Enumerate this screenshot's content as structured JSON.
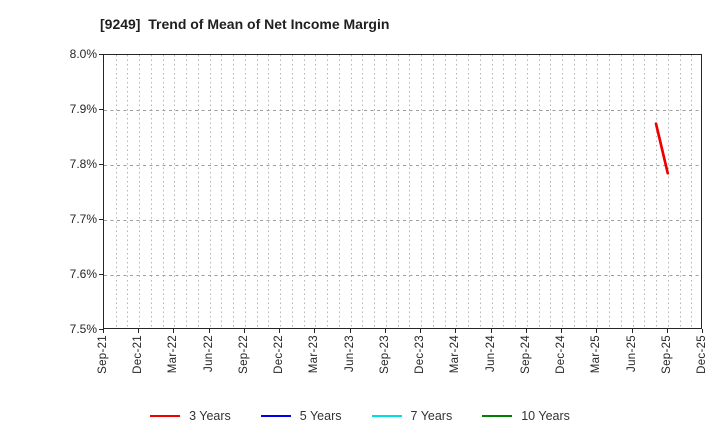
{
  "title": "[9249]  Trend of Mean of Net Income Margin",
  "chart_data": {
    "type": "line",
    "title": "[9249]  Trend of Mean of Net Income Margin",
    "xlabel": "",
    "ylabel": "",
    "ylim": [
      7.5,
      8.0
    ],
    "grid": true,
    "legend_position": "bottom",
    "yticks": [
      {
        "label": "8.0%",
        "value": 8.0
      },
      {
        "label": "7.9%",
        "value": 7.9
      },
      {
        "label": "7.8%",
        "value": 7.8
      },
      {
        "label": "7.7%",
        "value": 7.7
      },
      {
        "label": "7.6%",
        "value": 7.6
      },
      {
        "label": "7.5%",
        "value": 7.5
      }
    ],
    "x_tick_labels": [
      "Sep-21",
      "Dec-21",
      "Mar-22",
      "Jun-22",
      "Sep-22",
      "Dec-22",
      "Mar-23",
      "Jun-23",
      "Sep-23",
      "Dec-23",
      "Mar-24",
      "Jun-24",
      "Sep-24",
      "Dec-24",
      "Mar-25",
      "Jun-25",
      "Sep-25",
      "Dec-25"
    ],
    "x_minor_grid": "monthly",
    "series": [
      {
        "name": "3 Years",
        "color": "#ee0000",
        "points": [
          {
            "x": "Aug-25",
            "y": 7.875
          },
          {
            "x": "Sep-25",
            "y": 7.785
          }
        ]
      },
      {
        "name": "5 Years",
        "color": "#0000ee",
        "points": []
      },
      {
        "name": "7 Years",
        "color": "#00e0e0",
        "points": []
      },
      {
        "name": "10 Years",
        "color": "#008000",
        "points": []
      }
    ]
  },
  "colors": {
    "axis": "#262626",
    "grid_vertical": "#b5b5b5",
    "grid_horizontal": "#9e9e9e",
    "title_text": "#1f1f1f",
    "tick_text": "#262626",
    "legend_text": "#333333",
    "background": "#ffffff"
  }
}
